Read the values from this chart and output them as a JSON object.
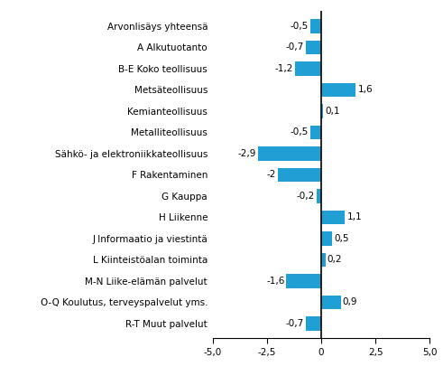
{
  "categories": [
    "Arvonlisäys yhteensä",
    "A Alkutuotanto",
    "B-E Koko teollisuus",
    "Metsäteollisuus",
    "Kemianteollisuus",
    "Metalliteollisuus",
    "Sähkö- ja elektroniikkateollisuus",
    "F Rakentaminen",
    "G Kauppa",
    "H Liikenne",
    "J Informaatio ja viestintä",
    "L Kiinteistöalan toiminta",
    "M-N Liike-elämän palvelut",
    "O-Q Koulutus, terveyspalvelut yms.",
    "R-T Muut palvelut"
  ],
  "values": [
    -0.5,
    -0.7,
    -1.2,
    1.6,
    0.1,
    -0.5,
    -2.9,
    -2.0,
    -0.2,
    1.1,
    0.5,
    0.2,
    -1.6,
    0.9,
    -0.7
  ],
  "bar_color": "#1f9fd4",
  "xlim": [
    -5.0,
    5.0
  ],
  "xticks": [
    -5.0,
    -2.5,
    0.0,
    2.5,
    5.0
  ],
  "xticklabels": [
    "-5,0",
    "-2,5",
    "0",
    "2,5",
    "5,0"
  ],
  "label_fontsize": 7.5,
  "value_fontsize": 7.5,
  "background_color": "#ffffff",
  "bar_height": 0.65
}
